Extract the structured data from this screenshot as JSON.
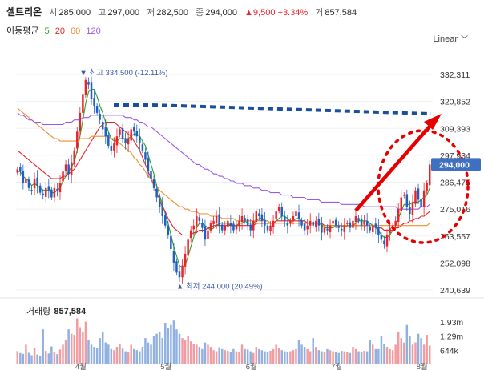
{
  "header": {
    "name": "셀트리온",
    "open_label": "시",
    "open": "285,000",
    "high_label": "고",
    "high": "297,000",
    "low_label": "저",
    "low": "282,500",
    "close_label": "종",
    "close": "294,000",
    "change": "▲9,500 +3.34%",
    "volume_label": "거",
    "volume": "857,584"
  },
  "ma_legend": {
    "title": "이동평균",
    "items": [
      {
        "label": "5",
        "color": "#2ca02c"
      },
      {
        "label": "20",
        "color": "#e8232b"
      },
      {
        "label": "60",
        "color": "#f08c2a"
      },
      {
        "label": "120",
        "color": "#9b59e8"
      }
    ]
  },
  "scale_selector": "Linear",
  "colors": {
    "up": "#e8232b",
    "down": "#1f5fbf",
    "annotation_red": "#e80000",
    "annotation_blue": "#1a4f9c"
  },
  "chart_data": {
    "type": "candlestick",
    "price_axis_ticks": [
      "332,311",
      "320,852",
      "309,393",
      "297,934",
      "286,475",
      "275,016",
      "263,557",
      "252,098",
      "240,639"
    ],
    "y_min": 240639,
    "y_max": 332311,
    "x_labels": [
      "4월",
      "5월",
      "6월",
      "7월",
      "8월"
    ],
    "current_price_label": "294,000",
    "high_marker": "최고 334,500 (-12.11%)",
    "low_marker": "최저 244,000 (20.49%)",
    "close_series": [
      292000,
      291000,
      286000,
      288000,
      284000,
      283000,
      288000,
      285000,
      282000,
      281000,
      284000,
      283000,
      280000,
      284000,
      283000,
      286000,
      291000,
      294000,
      290000,
      295000,
      300000,
      308000,
      316000,
      324000,
      330000,
      328000,
      322000,
      319000,
      316000,
      313000,
      309000,
      306000,
      302000,
      300000,
      303000,
      306000,
      309000,
      305000,
      303000,
      305000,
      309000,
      308000,
      306000,
      303000,
      300000,
      296000,
      291000,
      288000,
      284000,
      280000,
      276000,
      272000,
      268000,
      264000,
      258000,
      252000,
      248000,
      246000,
      251000,
      256000,
      262000,
      266000,
      268000,
      272000,
      270000,
      267000,
      262000,
      266000,
      269000,
      270000,
      272000,
      268000,
      266000,
      268000,
      270000,
      268000,
      266000,
      268000,
      270000,
      272000,
      270000,
      268000,
      266000,
      270000,
      274000,
      272000,
      270000,
      268000,
      266000,
      268000,
      270000,
      274000,
      276000,
      272000,
      270000,
      268000,
      270000,
      272000,
      274000,
      271000,
      268000,
      266000,
      268000,
      270000,
      268000,
      270000,
      268000,
      265000,
      267000,
      266000,
      268000,
      270000,
      268000,
      267000,
      266000,
      268000,
      269000,
      267000,
      270000,
      272000,
      270000,
      268000,
      270000,
      268000,
      266000,
      268000,
      267000,
      264000,
      262000,
      260000,
      264000,
      267000,
      268000,
      270000,
      275000,
      280000,
      281000,
      276000,
      273000,
      278000,
      283000,
      279000,
      276000,
      283000,
      286000,
      294000
    ],
    "ma_series": [
      {
        "name": "5",
        "values": [
          291000,
          291000,
          289000,
          288000,
          287000,
          285000,
          286000,
          285000,
          284000,
          283000,
          283000,
          283000,
          282000,
          282000,
          283000,
          284000,
          287000,
          289000,
          291000,
          293000,
          295000,
          300000,
          306000,
          313000,
          320000,
          325000,
          326000,
          326000,
          323000,
          319000,
          316000,
          312000,
          308000,
          305000,
          304000,
          304000,
          305000,
          305000,
          305000,
          305000,
          306000,
          307000,
          307000,
          306000,
          304000,
          302000,
          298000,
          294000,
          290000,
          285000,
          281000,
          277000,
          273000,
          269000,
          264000,
          259000,
          255000,
          251000,
          250000,
          251000,
          255000,
          259000,
          263000,
          267000,
          269000,
          269000,
          268000,
          267000,
          266000,
          267000,
          268000,
          269000,
          269000,
          269000,
          269000,
          268000,
          268000,
          268000,
          269000,
          269000,
          270000,
          269000,
          269000,
          269000,
          270000,
          271000,
          271000,
          270000,
          270000,
          269000,
          269000,
          270000,
          271000,
          272000,
          272000,
          271000,
          270000,
          270000,
          271000,
          271000,
          270000,
          270000,
          269000,
          269000,
          269000,
          269000,
          269000,
          268000,
          267000,
          267000,
          267000,
          267000,
          268000,
          268000,
          268000,
          267000,
          268000,
          268000,
          268000,
          269000,
          270000,
          270000,
          270000,
          270000,
          269000,
          268000,
          267000,
          266000,
          264000,
          263000,
          263000,
          264000,
          266000,
          268000,
          271000,
          274000,
          277000,
          277000,
          277000,
          278000,
          278000,
          278000,
          279000,
          280000,
          281000,
          284000
        ]
      },
      {
        "name": "20",
        "values": [
          300000,
          299000,
          298000,
          297000,
          296000,
          295000,
          294000,
          293000,
          292000,
          291000,
          290000,
          289000,
          288000,
          288000,
          288000,
          288000,
          289000,
          289000,
          290000,
          291000,
          292000,
          294000,
          296000,
          298000,
          300000,
          302000,
          304000,
          306000,
          308000,
          310000,
          311000,
          312000,
          312000,
          312000,
          312000,
          311000,
          310000,
          309000,
          308000,
          307000,
          306000,
          304000,
          302000,
          300000,
          297000,
          294000,
          291000,
          288000,
          285000,
          282000,
          279000,
          276000,
          274000,
          271000,
          269000,
          267000,
          266000,
          265000,
          264000,
          264000,
          264000,
          264000,
          265000,
          265000,
          266000,
          266000,
          266000,
          267000,
          267000,
          268000,
          268000,
          268000,
          268000,
          268000,
          268000,
          268000,
          268000,
          268000,
          268000,
          268000,
          268000,
          268000,
          268000,
          268000,
          269000,
          269000,
          269000,
          269000,
          269000,
          269000,
          269000,
          270000,
          270000,
          270000,
          270000,
          270000,
          270000,
          270000,
          270000,
          270000,
          270000,
          270000,
          269000,
          269000,
          269000,
          269000,
          269000,
          269000,
          268000,
          268000,
          268000,
          268000,
          268000,
          268000,
          268000,
          268000,
          268000,
          268000,
          268000,
          268000,
          268000,
          268000,
          268000,
          268000,
          268000,
          268000,
          268000,
          267000,
          267000,
          266000,
          266000,
          266000,
          266000,
          267000,
          267000,
          268000,
          269000,
          269000,
          270000,
          270000,
          271000,
          271000,
          272000,
          272000,
          273000,
          274000
        ]
      },
      {
        "name": "60",
        "values": [
          318000,
          317000,
          316000,
          315000,
          314000,
          313000,
          312000,
          311000,
          310000,
          309000,
          308000,
          307000,
          306000,
          305000,
          305000,
          304000,
          304000,
          304000,
          304000,
          304000,
          304000,
          304000,
          305000,
          305000,
          305000,
          305000,
          306000,
          306000,
          306000,
          306000,
          306000,
          306000,
          306000,
          305000,
          305000,
          304000,
          303000,
          302000,
          301000,
          300000,
          299000,
          297000,
          296000,
          294000,
          293000,
          291000,
          289000,
          288000,
          286000,
          285000,
          283000,
          282000,
          281000,
          280000,
          279000,
          278000,
          277000,
          276000,
          276000,
          275000,
          275000,
          274000,
          274000,
          274000,
          273000,
          273000,
          273000,
          273000,
          272000,
          272000,
          272000,
          272000,
          271000,
          271000,
          271000,
          271000,
          271000,
          270000,
          270000,
          270000,
          270000,
          270000,
          270000,
          270000,
          270000,
          270000,
          270000,
          270000,
          270000,
          269000,
          269000,
          269000,
          269000,
          269000,
          269000,
          269000,
          269000,
          269000,
          269000,
          269000,
          269000,
          269000,
          269000,
          269000,
          269000,
          269000,
          269000,
          268000,
          268000,
          268000,
          268000,
          268000,
          268000,
          268000,
          268000,
          268000,
          268000,
          268000,
          268000,
          268000,
          268000,
          268000,
          268000,
          268000,
          268000,
          268000,
          268000,
          268000,
          268000,
          268000,
          268000,
          268000,
          268000,
          268000,
          268000,
          268000,
          268000,
          268000,
          268000,
          268000,
          268000,
          268000,
          268000,
          268000,
          268000,
          269000
        ]
      },
      {
        "name": "120",
        "values": [
          316000,
          315000,
          315000,
          314000,
          313000,
          313000,
          312000,
          312000,
          312000,
          311000,
          311000,
          311000,
          311000,
          311000,
          311000,
          311000,
          311000,
          312000,
          312000,
          312000,
          313000,
          313000,
          313000,
          314000,
          314000,
          314000,
          315000,
          315000,
          315000,
          315000,
          315000,
          315000,
          315000,
          315000,
          315000,
          315000,
          315000,
          315000,
          314000,
          314000,
          314000,
          313000,
          313000,
          312000,
          312000,
          311000,
          310000,
          310000,
          309000,
          308000,
          307000,
          306000,
          305000,
          304000,
          303000,
          302000,
          301000,
          300000,
          299000,
          298000,
          297000,
          296000,
          295000,
          294000,
          294000,
          293000,
          292000,
          292000,
          291000,
          290000,
          290000,
          289000,
          289000,
          288000,
          288000,
          287000,
          287000,
          286000,
          286000,
          286000,
          285000,
          285000,
          285000,
          284000,
          284000,
          284000,
          283000,
          283000,
          283000,
          282000,
          282000,
          282000,
          282000,
          281000,
          281000,
          281000,
          281000,
          280000,
          280000,
          280000,
          280000,
          280000,
          279000,
          279000,
          279000,
          279000,
          279000,
          278000,
          278000,
          278000,
          278000,
          278000,
          278000,
          278000,
          277000,
          277000,
          277000,
          277000,
          277000,
          277000,
          277000,
          277000,
          276000,
          276000,
          276000,
          276000,
          276000,
          276000,
          276000,
          276000,
          276000,
          276000,
          276000,
          276000,
          275000,
          275000,
          275000,
          275000,
          275000,
          275000,
          275000,
          275000,
          276000,
          276000,
          276000,
          277000
        ]
      }
    ],
    "volume_title": "거래량",
    "volume_value": "857,584",
    "volume_axis_ticks": [
      "1.93m",
      "1.29m",
      "644k"
    ],
    "volume_max": 2300000,
    "volume_series": [
      610000,
      520000,
      480000,
      900000,
      530000,
      420000,
      760000,
      450000,
      380000,
      1600000,
      620000,
      500000,
      820000,
      560000,
      470000,
      680000,
      900000,
      1100000,
      1600000,
      1400000,
      1350000,
      2100000,
      1700000,
      1500000,
      1950000,
      1100000,
      900000,
      800000,
      760000,
      1200000,
      1500000,
      1000000,
      900000,
      700000,
      650000,
      800000,
      950000,
      720000,
      600000,
      560000,
      900000,
      700000,
      650000,
      600000,
      800000,
      1200000,
      1000000,
      900000,
      1300000,
      1400000,
      1500000,
      1200000,
      1900000,
      1650000,
      1800000,
      2000000,
      1600000,
      1400000,
      1200000,
      1100000,
      1300000,
      1050000,
      950000,
      900000,
      800000,
      700000,
      1000000,
      900000,
      800000,
      650000,
      600000,
      780000,
      700000,
      650000,
      620000,
      560000,
      700000,
      600000,
      550000,
      900000,
      700000,
      680000,
      600000,
      520000,
      800000,
      700000,
      650000,
      600000,
      560000,
      620000,
      700000,
      900000,
      760000,
      650000,
      600000,
      560000,
      600000,
      650000,
      700000,
      1100000,
      900000,
      800000,
      700000,
      600000,
      1200000,
      800000,
      650000,
      600000,
      560000,
      700000,
      650000,
      600000,
      560000,
      520000,
      620000,
      600000,
      560000,
      520000,
      800000,
      700000,
      600000,
      560000,
      620000,
      600000,
      1100000,
      900000,
      700000,
      700000,
      1300000,
      950000,
      800000,
      700000,
      650000,
      900000,
      1500000,
      1200000,
      1000000,
      1800000,
      1300000,
      900000,
      1000000,
      1400000,
      1200000,
      900000,
      1350000,
      857584
    ],
    "annotation": "red arrow and dotted circle highlighting the recent rebound; dashed blue line marks the previous resistance level"
  }
}
